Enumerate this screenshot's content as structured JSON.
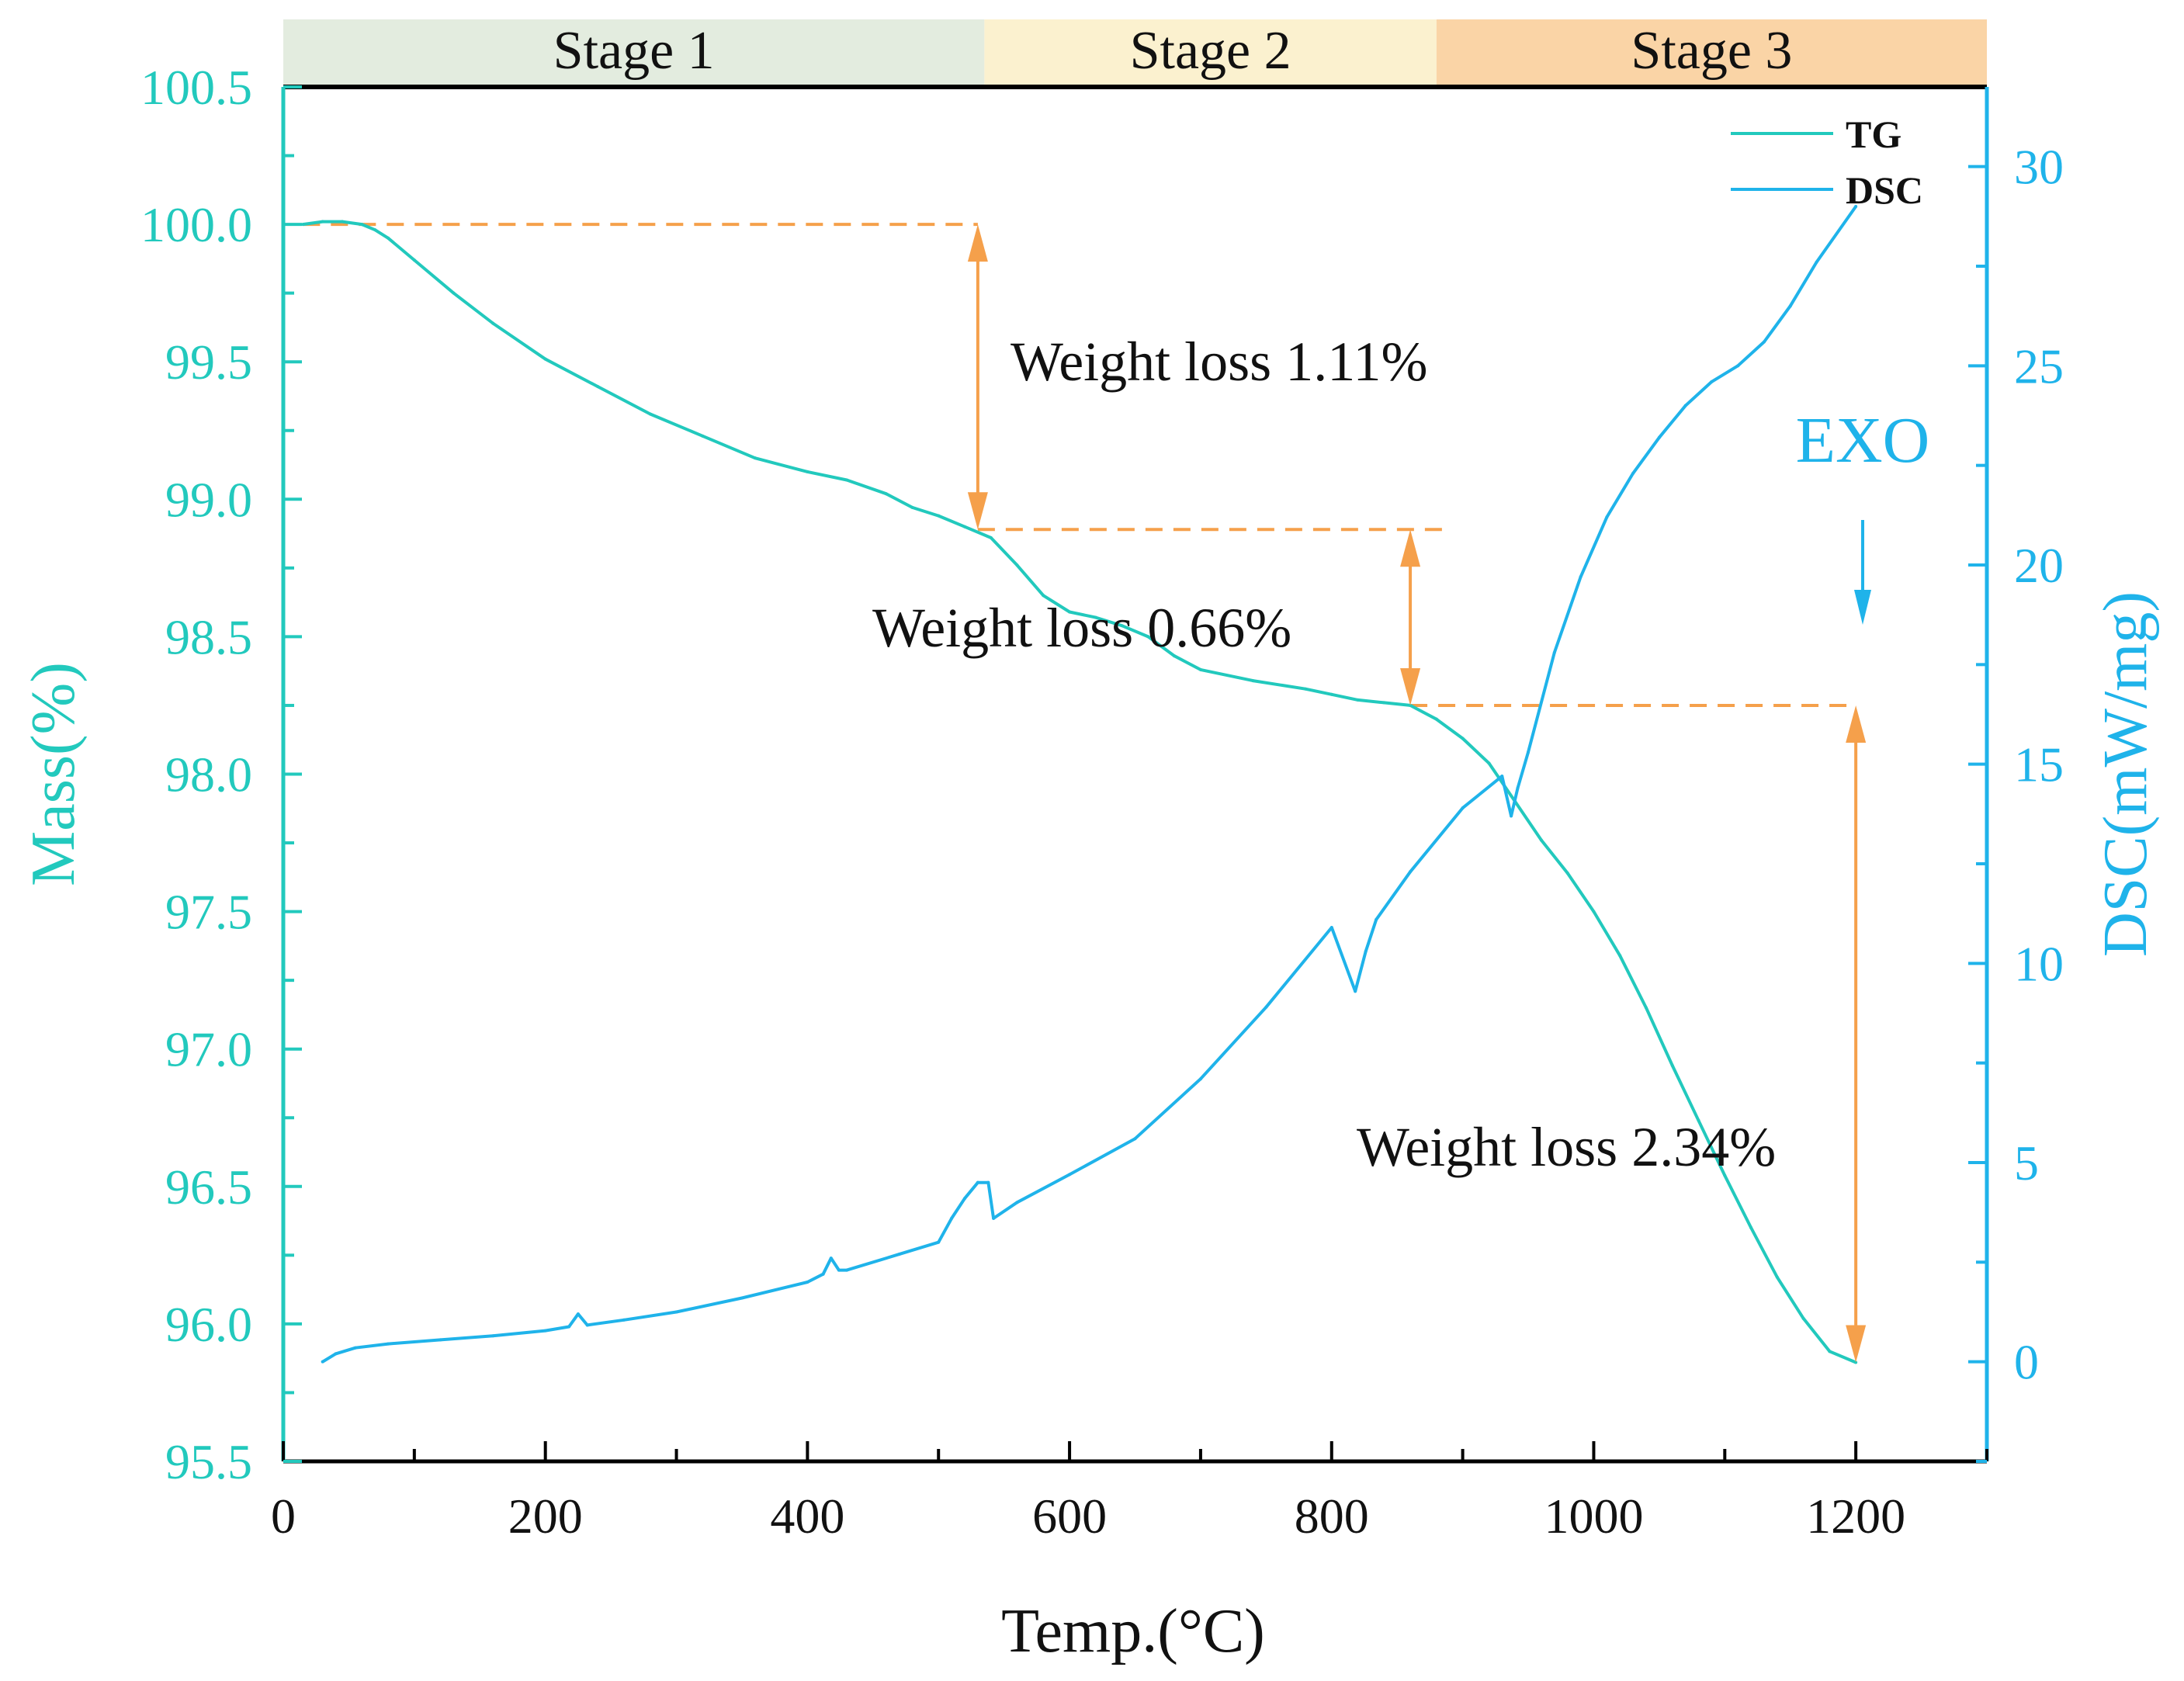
{
  "chart_data": {
    "type": "line",
    "xlabel": "Temp.(°C)",
    "ylabel_left": "Mass(%)",
    "ylabel_right": "DSC(mW/mg)",
    "xlim": [
      0,
      1300
    ],
    "xticks": [
      0,
      200,
      400,
      600,
      800,
      1000,
      1200
    ],
    "xtick_labels": [
      "0",
      "200",
      "400",
      "600",
      "800",
      "1000",
      "1200"
    ],
    "ylim_left": [
      95.5,
      100.5
    ],
    "yticks_left": [
      95.5,
      96.0,
      96.5,
      97.0,
      97.5,
      98.0,
      98.5,
      99.0,
      99.5,
      100.0,
      100.5
    ],
    "ytick_labels_left": [
      "95.5",
      "96.0",
      "96.5",
      "97.0",
      "97.5",
      "98.0",
      "98.5",
      "99.0",
      "99.5",
      "100.0",
      "100.5"
    ],
    "ylim_right": [
      -2.5,
      32
    ],
    "yticks_right": [
      0,
      5,
      10,
      15,
      20,
      25,
      30
    ],
    "ytick_labels_right": [
      "0",
      "5",
      "10",
      "15",
      "20",
      "25",
      "30"
    ],
    "grid": false,
    "legend": {
      "placement": "top-right",
      "entries": [
        "TG",
        "DSC"
      ]
    },
    "stages": [
      {
        "label": "Stage 1",
        "x_start": 0,
        "x_end": 535,
        "color": "#e3ecdf"
      },
      {
        "label": "Stage 2",
        "x_start": 535,
        "x_end": 880,
        "color": "#fbf1cf"
      },
      {
        "label": "Stage 3",
        "x_start": 880,
        "x_end": 1300,
        "color": "#fad4a6"
      }
    ],
    "series": [
      {
        "name": "TG",
        "axis": "left",
        "color": "#22c9bd",
        "x": [
          15,
          30,
          45,
          60,
          70,
          80,
          100,
          130,
          160,
          200,
          240,
          280,
          320,
          360,
          400,
          430,
          460,
          480,
          500,
          520,
          540,
          560,
          580,
          600,
          620,
          640,
          660,
          680,
          700,
          740,
          780,
          800,
          820,
          840,
          860,
          880,
          900,
          920,
          940,
          960,
          980,
          1000,
          1020,
          1040,
          1060,
          1080,
          1100,
          1120,
          1140,
          1160,
          1180,
          1200
        ],
        "y": [
          100.0,
          100.01,
          100.01,
          100.0,
          99.98,
          99.95,
          99.87,
          99.75,
          99.64,
          99.51,
          99.41,
          99.31,
          99.23,
          99.15,
          99.1,
          99.07,
          99.02,
          98.97,
          98.94,
          98.9,
          98.86,
          98.76,
          98.65,
          98.59,
          98.57,
          98.54,
          98.5,
          98.43,
          98.38,
          98.34,
          98.31,
          98.29,
          98.27,
          98.26,
          98.25,
          98.2,
          98.13,
          98.04,
          97.9,
          97.76,
          97.64,
          97.5,
          97.34,
          97.15,
          96.94,
          96.74,
          96.54,
          96.35,
          96.17,
          96.02,
          95.9,
          95.86
        ]
      },
      {
        "name": "DSC",
        "axis": "right",
        "color": "#1fb3ea",
        "x": [
          30,
          40,
          55,
          80,
          120,
          160,
          200,
          218,
          225,
          232,
          260,
          300,
          350,
          400,
          412,
          418,
          424,
          430,
          470,
          500,
          510,
          520,
          530,
          538,
          542,
          560,
          600,
          650,
          700,
          750,
          800,
          818,
          826,
          834,
          860,
          900,
          930,
          937,
          942,
          950,
          970,
          990,
          1010,
          1030,
          1050,
          1070,
          1090,
          1110,
          1130,
          1150,
          1170,
          1200
        ],
        "y": [
          0.0,
          0.2,
          0.35,
          0.45,
          0.55,
          0.65,
          0.78,
          0.88,
          1.2,
          0.92,
          1.05,
          1.25,
          1.6,
          2.0,
          2.2,
          2.6,
          2.3,
          2.3,
          2.7,
          3.0,
          3.6,
          4.1,
          4.5,
          4.5,
          3.6,
          4.0,
          4.7,
          5.6,
          7.1,
          8.9,
          10.9,
          9.3,
          10.3,
          11.1,
          12.3,
          13.9,
          14.7,
          13.7,
          14.4,
          15.3,
          17.8,
          19.7,
          21.2,
          22.3,
          23.2,
          24.0,
          24.6,
          25.0,
          25.6,
          26.5,
          27.6,
          29.0
        ]
      }
    ],
    "annotations": [
      {
        "text": "Weight loss  1.11%",
        "x_from": 530,
        "y_from": 100.0,
        "y_to": 98.89
      },
      {
        "text": "Weight loss  0.66%",
        "x_from": 860,
        "y_from": 98.89,
        "y_to": 98.25
      },
      {
        "text": "Weight loss  2.34%",
        "x_from": 1200,
        "y_from": 98.25,
        "y_to": 95.86
      },
      {
        "text": "EXO"
      }
    ],
    "colors": {
      "tg": "#22c9bd",
      "dsc": "#1fb3ea",
      "arrow": "#f5a04b",
      "axis": "#000000"
    }
  }
}
